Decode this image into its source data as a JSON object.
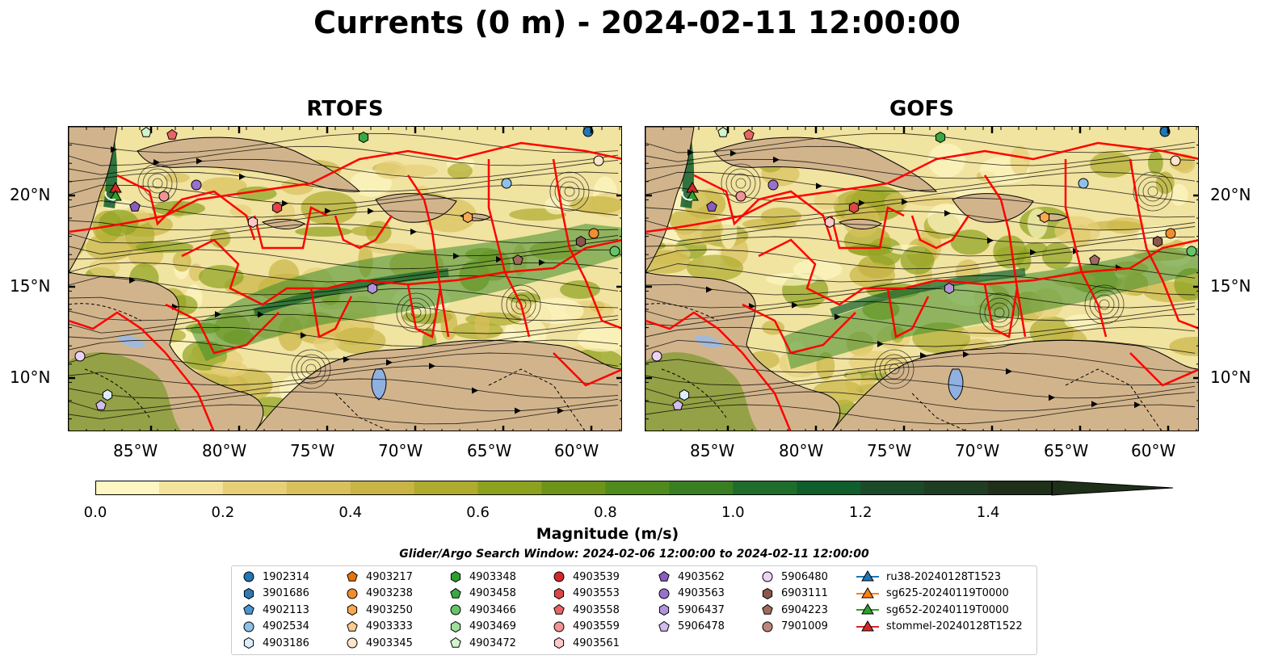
{
  "title": "Currents (0 m) - 2024-02-11 12:00:00",
  "panels": [
    {
      "title": "RTOFS"
    },
    {
      "title": "GOFS"
    }
  ],
  "lat_labels": [
    "20°N",
    "15°N",
    "10°N"
  ],
  "lon_labels": [
    "85°W",
    "80°W",
    "75°W",
    "70°W",
    "65°W",
    "60°W"
  ],
  "colorbar": {
    "label": "Magnitude (m/s)",
    "ticks": [
      "0.0",
      "0.2",
      "0.4",
      "0.6",
      "0.8",
      "1.0",
      "1.2",
      "1.4"
    ],
    "range": [
      0,
      1.5
    ],
    "colors": [
      "#fdf7c3",
      "#f3e39c",
      "#e6cf77",
      "#d8c15c",
      "#c8b545",
      "#aeab2e",
      "#8ca11e",
      "#6b9418",
      "#4f8a1c",
      "#3a7e22",
      "#1f6d2a",
      "#0f5e2b",
      "#1b4a28",
      "#1f3d22",
      "#1e2f1a"
    ]
  },
  "search_window": "Glider/Argo Search Window: 2024-02-06 12:00:00 to 2024-02-11 12:00:00",
  "legend": {
    "columns": [
      [
        {
          "label": "1902314",
          "marker": "circle",
          "color": "#1f77b4"
        },
        {
          "label": "3901686",
          "marker": "hexagon",
          "color": "#2e79b5"
        },
        {
          "label": "4902113",
          "marker": "pentagon",
          "color": "#4b94d0"
        },
        {
          "label": "4902534",
          "marker": "circle",
          "color": "#8fc1e8"
        },
        {
          "label": "4903186",
          "marker": "hexagon",
          "color": "#dbeefc"
        }
      ],
      [
        {
          "label": "4903217",
          "marker": "pentagon",
          "color": "#e8740c"
        },
        {
          "label": "4903238",
          "marker": "circle",
          "color": "#f28d2d"
        },
        {
          "label": "4903250",
          "marker": "hexagon",
          "color": "#f7a851"
        },
        {
          "label": "4903333",
          "marker": "pentagon",
          "color": "#fbcb91"
        },
        {
          "label": "4903345",
          "marker": "circle",
          "color": "#fde6c8"
        }
      ],
      [
        {
          "label": "4903348",
          "marker": "hexagon",
          "color": "#2ca02c"
        },
        {
          "label": "4903458",
          "marker": "pentagon",
          "color": "#39a845"
        },
        {
          "label": "4903466",
          "marker": "circle",
          "color": "#66c466"
        },
        {
          "label": "4903469",
          "marker": "hexagon",
          "color": "#9ee09a"
        },
        {
          "label": "4903472",
          "marker": "pentagon",
          "color": "#d2f5cc"
        }
      ],
      [
        {
          "label": "4903539",
          "marker": "circle",
          "color": "#d62728"
        },
        {
          "label": "4903553",
          "marker": "hexagon",
          "color": "#e04646"
        },
        {
          "label": "4903558",
          "marker": "pentagon",
          "color": "#e86464"
        },
        {
          "label": "4903559",
          "marker": "circle",
          "color": "#f29494"
        },
        {
          "label": "4903561",
          "marker": "hexagon",
          "color": "#fcc8c8"
        }
      ],
      [
        {
          "label": "4903562",
          "marker": "pentagon",
          "color": "#8a5cbf"
        },
        {
          "label": "4903563",
          "marker": "circle",
          "color": "#9a70cc"
        },
        {
          "label": "5906437",
          "marker": "hexagon",
          "color": "#b393db"
        },
        {
          "label": "5906478",
          "marker": "pentagon",
          "color": "#d2bdee"
        }
      ],
      [
        {
          "label": "5906480",
          "marker": "circle",
          "color": "#ecd3f4"
        },
        {
          "label": "6903111",
          "marker": "hexagon",
          "color": "#8c564b"
        },
        {
          "label": "6904223",
          "marker": "pentagon",
          "color": "#9e6b5e"
        },
        {
          "label": "7901009",
          "marker": "circle",
          "color": "#c0867a"
        }
      ],
      [
        {
          "label": "ru38-20240128T1523",
          "marker": "triangle-line",
          "color": "#1f77b4"
        },
        {
          "label": "sg625-20240119T0000",
          "marker": "triangle-line",
          "color": "#ff7f0e"
        },
        {
          "label": "sg652-20240119T0000",
          "marker": "triangle-line",
          "color": "#2ca02c"
        },
        {
          "label": "stommel-20240128T1522",
          "marker": "triangle-line",
          "color": "#d62728"
        }
      ]
    ]
  }
}
